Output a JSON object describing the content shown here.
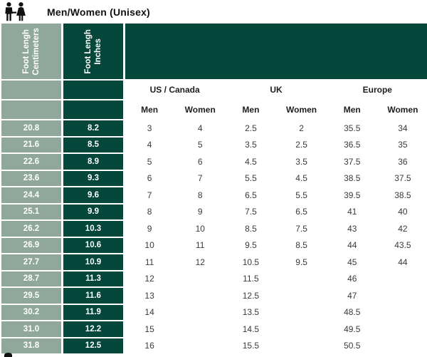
{
  "header": {
    "title": "Men/Women (Unisex)"
  },
  "icons": {
    "header_icon": "man-woman-pictogram",
    "bottom_partial": "man-woman-pictogram-cropped"
  },
  "colors": {
    "sage": "#90A79B",
    "dark-green": "#05473A",
    "title-text": "#111111",
    "header-text": "#1e1e1e",
    "data-text": "#3a3a3a"
  },
  "chart_data": {
    "type": "table",
    "title": "Men/Women (Unisex)",
    "row_headers": [
      [
        "Foot Lengh",
        "Centimeters"
      ],
      [
        "Foot Lengh",
        "Inches"
      ]
    ],
    "column_groups": [
      {
        "label": "US / Canada",
        "span": 2
      },
      {
        "label": "UK",
        "span": 2
      },
      {
        "label": "Europe",
        "span": 2
      }
    ],
    "sub_headers": [
      "Men",
      "Women",
      "Men",
      "Women",
      "Men",
      "Women"
    ],
    "columns": [
      "Foot Lengh Centimeters",
      "Foot Lengh Inches",
      "US/Canada Men",
      "US/Canada Women",
      "UK Men",
      "UK Women",
      "Europe Men",
      "Europe Women"
    ],
    "rows": [
      [
        "20.8",
        "8.2",
        "3",
        "4",
        "2.5",
        "2",
        "35.5",
        "34"
      ],
      [
        "21.6",
        "8.5",
        "4",
        "5",
        "3.5",
        "2.5",
        "36.5",
        "35"
      ],
      [
        "22.6",
        "8.9",
        "5",
        "6",
        "4.5",
        "3.5",
        "37.5",
        "36"
      ],
      [
        "23.6",
        "9.3",
        "6",
        "7",
        "5.5",
        "4.5",
        "38.5",
        "37.5"
      ],
      [
        "24.4",
        "9.6",
        "7",
        "8",
        "6.5",
        "5.5",
        "39.5",
        "38.5"
      ],
      [
        "25.1",
        "9.9",
        "8",
        "9",
        "7.5",
        "6.5",
        "41",
        "40"
      ],
      [
        "26.2",
        "10.3",
        "9",
        "10",
        "8.5",
        "7.5",
        "43",
        "42"
      ],
      [
        "26.9",
        "10.6",
        "10",
        "11",
        "9.5",
        "8.5",
        "44",
        "43.5"
      ],
      [
        "27.7",
        "10.9",
        "11",
        "12",
        "10.5",
        "9.5",
        "45",
        "44"
      ],
      [
        "28.7",
        "11.3",
        "12",
        "",
        "11.5",
        "",
        "46",
        ""
      ],
      [
        "29.5",
        "11.6",
        "13",
        "",
        "12.5",
        "",
        "47",
        ""
      ],
      [
        "30.2",
        "11.9",
        "14",
        "",
        "13.5",
        "",
        "48.5",
        ""
      ],
      [
        "31.0",
        "12.2",
        "15",
        "",
        "14.5",
        "",
        "49.5",
        ""
      ],
      [
        "31.8",
        "12.5",
        "16",
        "",
        "15.5",
        "",
        "50.5",
        ""
      ]
    ]
  }
}
